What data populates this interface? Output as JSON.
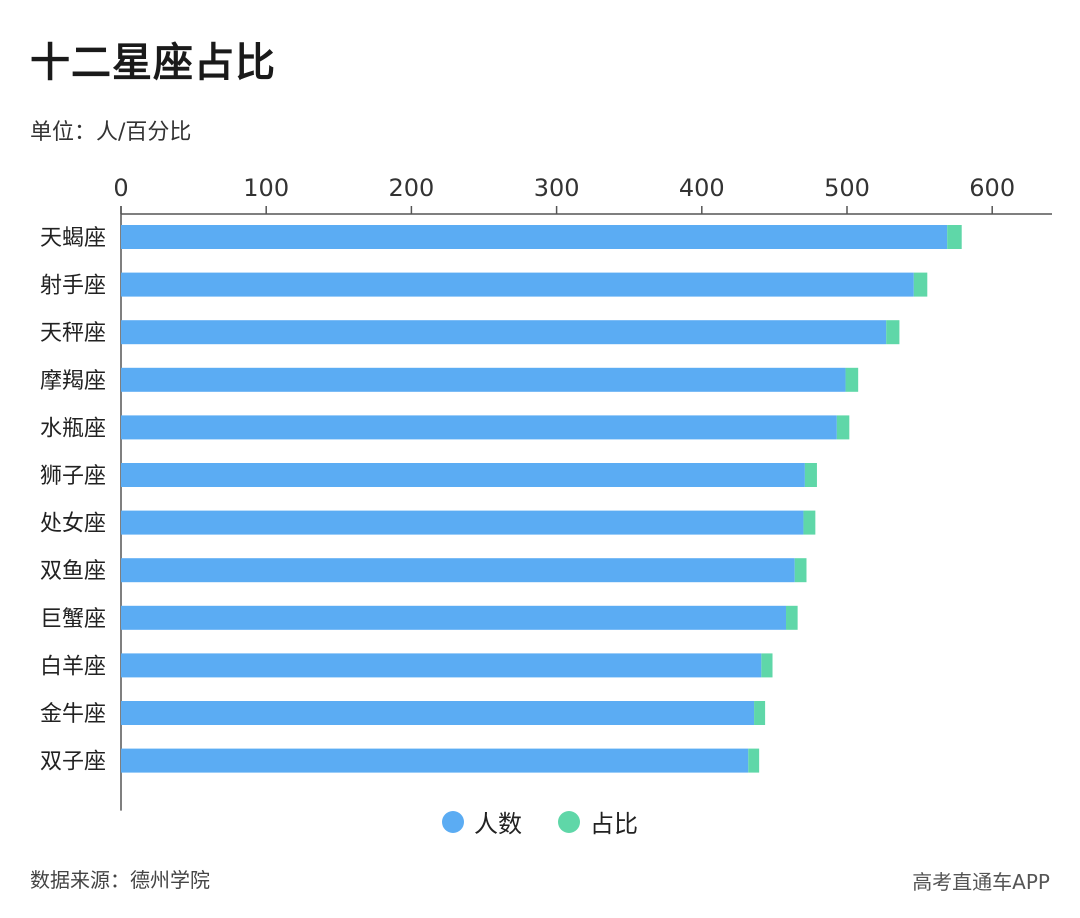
{
  "title": "十二星座占比",
  "unit": "单位：人/百分比",
  "source": "数据来源：德州学院",
  "watermark": "高考直通车APP",
  "colors": {
    "count": "#5BACF3",
    "share": "#5FD7A8"
  },
  "chart_data": {
    "type": "bar",
    "orientation": "horizontal",
    "stacked": true,
    "title": "十二星座占比",
    "categories": [
      "天蝎座",
      "射手座",
      "天秤座",
      "摩羯座",
      "水瓶座",
      "狮子座",
      "处女座",
      "双鱼座",
      "巨蟹座",
      "白羊座",
      "金牛座",
      "双子座"
    ],
    "series": [
      {
        "name": "人数",
        "values": [
          569,
          546,
          527,
          499,
          493,
          471,
          470,
          464,
          458,
          441,
          436,
          432
        ]
      },
      {
        "name": "占比",
        "values": [
          10,
          9.3,
          9.1,
          8.7,
          8.6,
          8.3,
          8.2,
          8.1,
          8,
          7.7,
          7.6,
          7.5
        ]
      }
    ],
    "xlim": [
      0,
      640
    ],
    "xticks": [
      0,
      100,
      200,
      300,
      400,
      500,
      600
    ],
    "axis_position": "top",
    "legend": "bottom-center",
    "grid": false
  }
}
